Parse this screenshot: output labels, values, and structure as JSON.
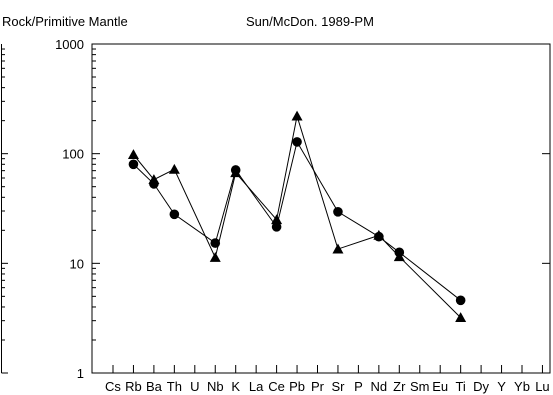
{
  "chart_data": {
    "type": "line",
    "title_left": "Rock/Primitive Mantle",
    "title_right": "Sun/McDon. 1989-PM",
    "y_scale": "log",
    "ylim": [
      1,
      1000
    ],
    "y_ticks": [
      {
        "value": 1,
        "label": "1"
      },
      {
        "value": 10,
        "label": "10"
      },
      {
        "value": 100,
        "label": "100"
      },
      {
        "value": 1000,
        "label": "1000"
      }
    ],
    "categories": [
      "Cs",
      "Rb",
      "Ba",
      "Th",
      "U",
      "Nb",
      "K",
      "La",
      "Ce",
      "Pb",
      "Pr",
      "Sr",
      "P",
      "Nd",
      "Zr",
      "Sm",
      "Eu",
      "Ti",
      "Dy",
      "Y",
      "Yb",
      "Lu"
    ],
    "series": [
      {
        "marker": "circle",
        "points": [
          {
            "category": "Rb",
            "value": 80
          },
          {
            "category": "Ba",
            "value": 53
          },
          {
            "category": "Th",
            "value": 28
          },
          {
            "category": "Nb",
            "value": 15.3
          },
          {
            "category": "K",
            "value": 71
          },
          {
            "category": "Ce",
            "value": 21.5
          },
          {
            "category": "Pb",
            "value": 128
          },
          {
            "category": "Sr",
            "value": 29.5
          },
          {
            "category": "Nd",
            "value": 17.5
          },
          {
            "category": "Zr",
            "value": 12.6
          },
          {
            "category": "Ti",
            "value": 4.6
          }
        ]
      },
      {
        "marker": "triangle",
        "points": [
          {
            "category": "Rb",
            "value": 98
          },
          {
            "category": "Ba",
            "value": 58
          },
          {
            "category": "Th",
            "value": 72
          },
          {
            "category": "Nb",
            "value": 11.3
          },
          {
            "category": "K",
            "value": 67
          },
          {
            "category": "Ce",
            "value": 25
          },
          {
            "category": "Pb",
            "value": 220
          },
          {
            "category": "Sr",
            "value": 13.5
          },
          {
            "category": "Nd",
            "value": 18
          },
          {
            "category": "Zr",
            "value": 11.5
          },
          {
            "category": "Ti",
            "value": 3.2
          }
        ]
      }
    ]
  }
}
